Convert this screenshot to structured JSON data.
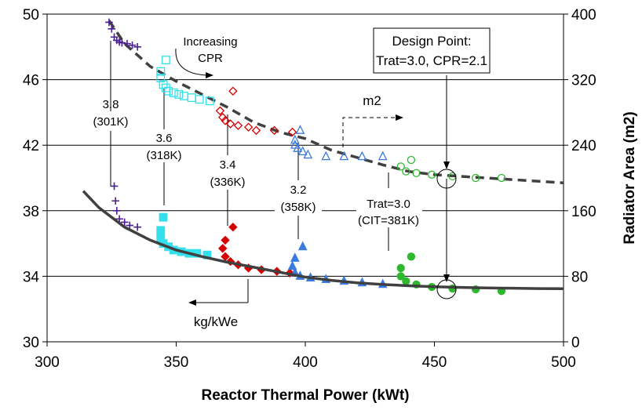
{
  "chart_data": {
    "type": "scatter",
    "title": "",
    "xlabel": "Reactor Thermal Power (kWt)",
    "ylabel": "",
    "y2label": "Radiator Area (m2)",
    "xlim": [
      300,
      500
    ],
    "ylim": [
      30,
      50
    ],
    "y2lim": [
      0,
      400
    ],
    "xticks": [
      "300",
      "350",
      "400",
      "450",
      "500"
    ],
    "yticks": [
      "30",
      "34",
      "38",
      "42",
      "46",
      "50"
    ],
    "y2ticks": [
      "0",
      "80",
      "160",
      "240",
      "320",
      "400"
    ],
    "grid": "horizontal",
    "colors": {
      "trat38": "#4b1f8f",
      "trat36": "#33e0ec",
      "trat34": "#d40000",
      "trat32": "#3a7be0",
      "trat30": "#2eb82e",
      "curve": "#404040"
    },
    "series": [
      {
        "name": "3.8\n(301K)",
        "axis": "left",
        "marker": "plus",
        "color": "#4b1f8f",
        "x": [
          326,
          326.5,
          327,
          328,
          330,
          332,
          335
        ],
        "y": [
          39.5,
          38.6,
          38.0,
          37.5,
          37.3,
          37.1,
          37.0
        ]
      },
      {
        "name": "3.6\n(318K)",
        "axis": "left",
        "marker": "square",
        "filled": true,
        "color": "#33e0ec",
        "x": [
          345,
          344,
          344,
          345,
          347,
          349,
          352,
          355,
          358,
          362
        ],
        "y": [
          37.6,
          36.8,
          36.3,
          36.0,
          35.8,
          35.6,
          35.5,
          35.4,
          35.4,
          35.3
        ]
      },
      {
        "name": "3.4\n(336K)",
        "axis": "left",
        "marker": "diamond",
        "filled": true,
        "color": "#d40000",
        "x": [
          372,
          369,
          368,
          369,
          371,
          374,
          378,
          383,
          389,
          394
        ],
        "y": [
          37.0,
          36.2,
          35.7,
          35.2,
          34.9,
          34.7,
          34.5,
          34.4,
          34.3,
          34.2
        ]
      },
      {
        "name": "3.2\n(358K)",
        "axis": "left",
        "marker": "triangle",
        "filled": true,
        "color": "#3a7be0",
        "x": [
          399,
          396,
          395,
          396,
          398,
          402,
          408,
          415,
          422,
          430
        ],
        "y": [
          35.8,
          35.1,
          34.6,
          34.2,
          34.0,
          33.9,
          33.8,
          33.7,
          33.6,
          33.5
        ]
      },
      {
        "name": "Trat=3.0\n(CIT=381K)",
        "axis": "left",
        "marker": "circle",
        "filled": true,
        "color": "#2eb82e",
        "x": [
          441,
          437,
          437,
          439,
          443,
          449,
          457,
          466,
          476
        ],
        "y": [
          35.2,
          34.5,
          34.0,
          33.7,
          33.5,
          33.35,
          33.25,
          33.2,
          33.1
        ]
      },
      {
        "name": "kg/kWe",
        "axis": "left",
        "marker": "none",
        "line": "solid",
        "color": "#404040",
        "x": [
          314,
          320,
          330,
          340,
          350,
          360,
          370,
          380,
          390,
          400,
          410,
          420,
          430,
          440,
          450,
          460,
          470,
          480,
          490,
          500
        ],
        "y": [
          39.2,
          38.2,
          37.0,
          36.2,
          35.6,
          35.2,
          34.85,
          34.55,
          34.25,
          33.95,
          33.75,
          33.6,
          33.5,
          33.42,
          33.36,
          33.32,
          33.29,
          33.27,
          33.25,
          33.24
        ]
      },
      {
        "name": "m2",
        "axis": "right",
        "marker": "none",
        "line": "dashed",
        "color": "#404040",
        "x": [
          324,
          330,
          340,
          350,
          360,
          370,
          380,
          390,
          400,
          410,
          420,
          430,
          440,
          450,
          460,
          470,
          480,
          490,
          500
        ],
        "y": [
          392,
          364,
          336,
          318,
          302,
          286,
          268,
          256,
          248,
          234,
          225,
          216,
          208,
          204,
          202,
          200,
          198,
          196,
          194
        ]
      },
      {
        "name": "3.8",
        "axis": "right",
        "marker": "plus",
        "color": "#4b1f8f",
        "x": [
          324,
          325,
          326,
          327,
          328,
          329,
          331,
          333,
          335
        ],
        "y": [
          390,
          382,
          372,
          368,
          366,
          365,
          364,
          362,
          360
        ]
      },
      {
        "name": "3.6",
        "axis": "right",
        "marker": "square",
        "filled": false,
        "color": "#33e0ec",
        "x": [
          346,
          344,
          344,
          345,
          346,
          347,
          349,
          351,
          353,
          356,
          359,
          363
        ],
        "y": [
          344,
          330,
          322,
          314,
          310,
          306,
          304,
          302,
          300,
          298,
          296,
          294
        ]
      },
      {
        "name": "3.4",
        "axis": "right",
        "marker": "diamond",
        "filled": false,
        "color": "#d40000",
        "x": [
          372,
          367,
          368,
          369,
          371,
          374,
          378,
          381,
          388,
          395
        ],
        "y": [
          306,
          282,
          274,
          270,
          266,
          264,
          262,
          258,
          258,
          256
        ]
      },
      {
        "name": "3.2",
        "axis": "right",
        "marker": "triangle",
        "filled": false,
        "color": "#3a7be0",
        "x": [
          398,
          396,
          396,
          397,
          399,
          401,
          408,
          415,
          422,
          430
        ],
        "y": [
          258,
          246,
          240,
          236,
          232,
          228,
          226,
          226,
          226,
          226
        ]
      },
      {
        "name": "3.0",
        "axis": "right",
        "marker": "circle",
        "filled": false,
        "color": "#2eb82e",
        "x": [
          441,
          437,
          439,
          443,
          449,
          457,
          466,
          476
        ],
        "y": [
          222,
          214,
          208,
          206,
          204,
          202,
          200,
          200
        ]
      }
    ],
    "annotations": {
      "increasing": "Increasing",
      "cpr": "CPR",
      "design_line1": "Design Point:",
      "design_line2": "Trat=3.0, CPR=2.1",
      "m2": "m2",
      "kg_kwe": "kg/kWe",
      "l38a": "3.8",
      "l38b": "(301K)",
      "l36a": "3.6",
      "l36b": "(318K)",
      "l34a": "3.4",
      "l34b": "(336K)",
      "l32a": "3.2",
      "l32b": "(358K)",
      "l30a": "Trat=3.0",
      "l30b": "(CIT=381K)"
    }
  }
}
